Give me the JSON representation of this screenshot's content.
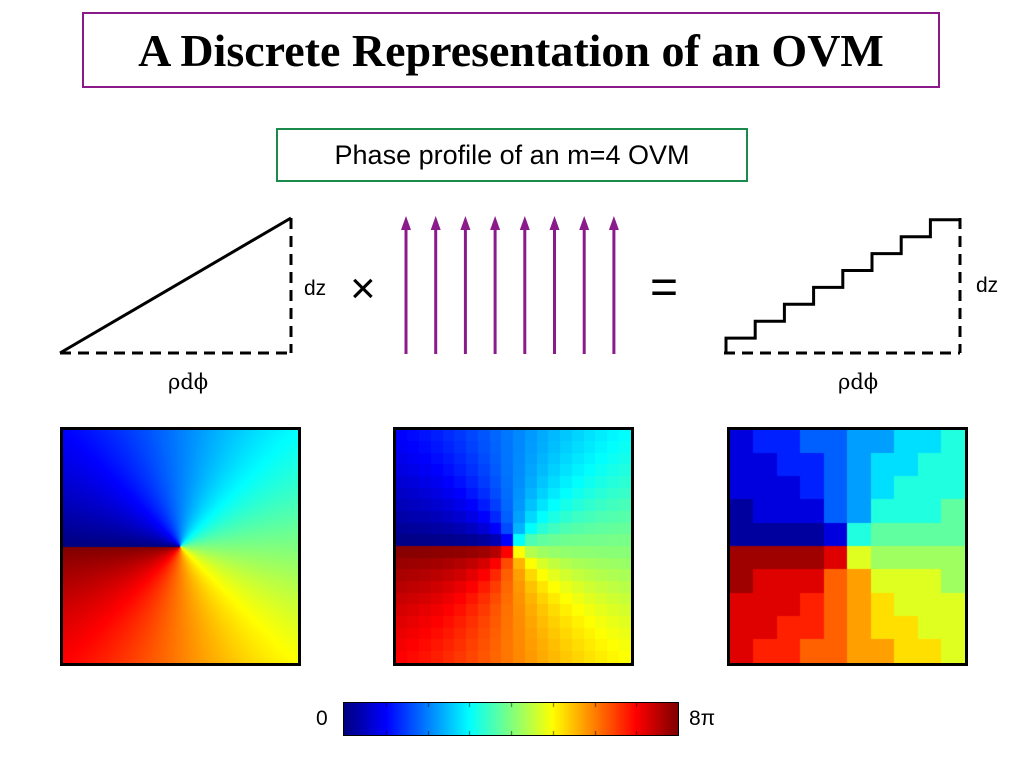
{
  "title": "A Discrete Representation of an OVM",
  "subtitle": "Phase profile of an m=4 OVM",
  "labels": {
    "dz_left": "dz",
    "rho_dphi_left": "ρdϕ",
    "dz_right": "dz",
    "rho_dphi_right": "ρdϕ",
    "times": "×",
    "equals": "="
  },
  "colors": {
    "title_border": "#8a1a8a",
    "subtitle_border": "#1c8a4a",
    "arrows": "#8b1a8b"
  },
  "phase_maps": [
    {
      "name": "continuous",
      "topological_charge": 4
    },
    {
      "name": "coarse-grid",
      "topological_charge": 4,
      "grid": 20
    },
    {
      "name": "quantized-grid",
      "topological_charge": 4,
      "grid": 10,
      "levels": 8
    }
  ],
  "colorbar": {
    "colormap": "jet",
    "min_label": "0",
    "max_label": "8π"
  }
}
